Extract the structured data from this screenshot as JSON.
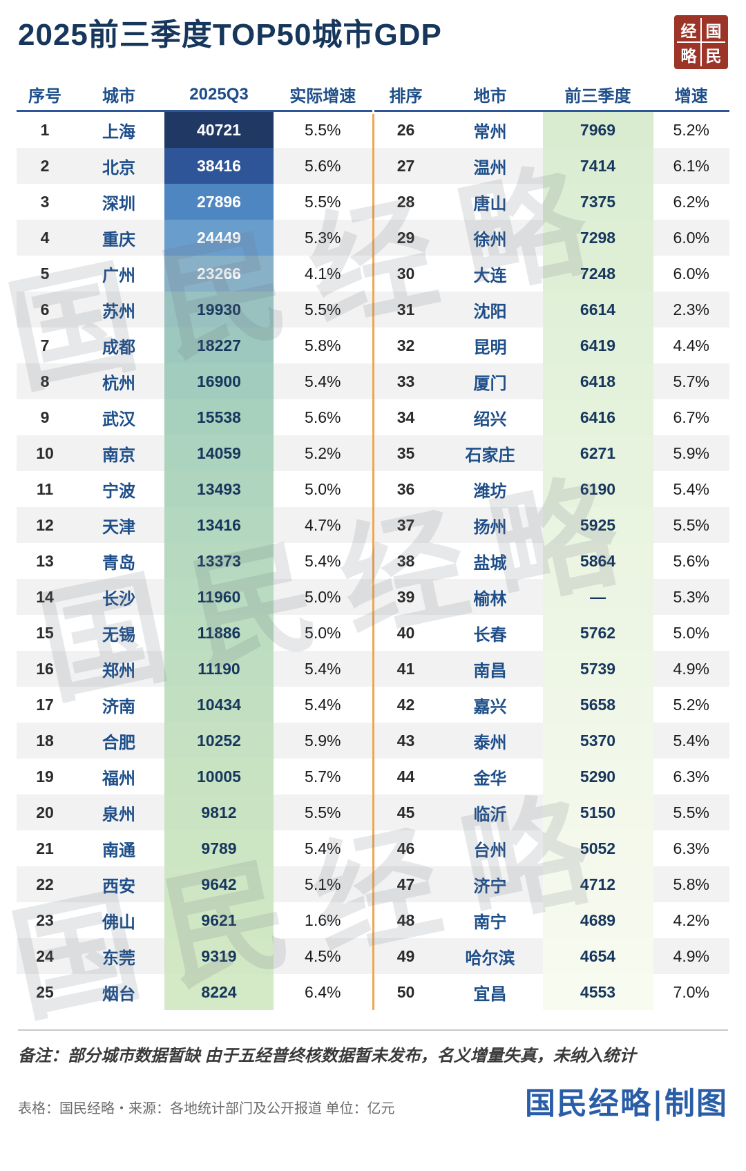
{
  "title": "2025前三季度TOP50城市GDP",
  "watermark": "国民经略",
  "logo": {
    "chars": [
      "经",
      "国",
      "略",
      "民"
    ]
  },
  "colors": {
    "title": "#16365c",
    "header_blue": "#2e5597",
    "divider_orange": "#f0a54f",
    "city_blue": "#1d4e89",
    "stripe": "#f2f2f2",
    "logo_red": "#9c3528",
    "credit_blue": "#2a5da8"
  },
  "footer": {
    "note": "备注：部分城市数据暂缺 由于五经普终核数据暂未发布，名义增量失真，未纳入统计",
    "source": "表格：国民经略・来源：各地统计部门及公开报道 单位：亿元",
    "credit": "国民经略|制图"
  },
  "chart_data": {
    "type": "table",
    "title": "2025前三季度TOP50城市GDP",
    "unit": "亿元",
    "left_columns": [
      "序号",
      "城市",
      "2025Q3",
      "实际增速"
    ],
    "right_columns": [
      "排序",
      "地市",
      "前三季度",
      "增速"
    ],
    "left_rows": [
      {
        "rank": "1",
        "city": "上海",
        "gdp": "40721",
        "growth": "5.5%",
        "bg": "#1f3864",
        "fg": "#ffffff"
      },
      {
        "rank": "2",
        "city": "北京",
        "gdp": "38416",
        "growth": "5.6%",
        "bg": "#2e5597",
        "fg": "#ffffff"
      },
      {
        "rank": "3",
        "city": "深圳",
        "gdp": "27896",
        "growth": "5.5%",
        "bg": "#4e86c2",
        "fg": "#ffffff"
      },
      {
        "rank": "4",
        "city": "重庆",
        "gdp": "24449",
        "growth": "5.3%",
        "bg": "#699dcb",
        "fg": "#ffffff"
      },
      {
        "rank": "5",
        "city": "广州",
        "gdp": "23266",
        "growth": "4.1%",
        "bg": "#88b0c6",
        "fg": "#ffffff"
      },
      {
        "rank": "6",
        "city": "苏州",
        "gdp": "19930",
        "growth": "5.5%",
        "bg": "#98c1c0",
        "fg": "#17365d"
      },
      {
        "rank": "7",
        "city": "成都",
        "gdp": "18227",
        "growth": "5.8%",
        "bg": "#9dc8bd",
        "fg": "#17365d"
      },
      {
        "rank": "8",
        "city": "杭州",
        "gdp": "16900",
        "growth": "5.4%",
        "bg": "#a2ccbd",
        "fg": "#17365d"
      },
      {
        "rank": "9",
        "city": "武汉",
        "gdp": "15538",
        "growth": "5.6%",
        "bg": "#a7d0bd",
        "fg": "#17365d"
      },
      {
        "rank": "10",
        "city": "南京",
        "gdp": "14059",
        "growth": "5.2%",
        "bg": "#acd3be",
        "fg": "#17365d"
      },
      {
        "rank": "11",
        "city": "宁波",
        "gdp": "13493",
        "growth": "5.0%",
        "bg": "#b0d5be",
        "fg": "#17365d"
      },
      {
        "rank": "12",
        "city": "天津",
        "gdp": "13416",
        "growth": "4.7%",
        "bg": "#b3d7bf",
        "fg": "#17365d"
      },
      {
        "rank": "13",
        "city": "青岛",
        "gdp": "13373",
        "growth": "5.4%",
        "bg": "#b6d9bf",
        "fg": "#17365d"
      },
      {
        "rank": "14",
        "city": "长沙",
        "gdp": "11960",
        "growth": "5.0%",
        "bg": "#b9dbc0",
        "fg": "#17365d"
      },
      {
        "rank": "15",
        "city": "无锡",
        "gdp": "11886",
        "growth": "5.0%",
        "bg": "#bcddc0",
        "fg": "#17365d"
      },
      {
        "rank": "16",
        "city": "郑州",
        "gdp": "11190",
        "growth": "5.4%",
        "bg": "#bfdec1",
        "fg": "#17365d"
      },
      {
        "rank": "17",
        "city": "济南",
        "gdp": "10434",
        "growth": "5.4%",
        "bg": "#c2e0c1",
        "fg": "#17365d"
      },
      {
        "rank": "18",
        "city": "合肥",
        "gdp": "10252",
        "growth": "5.9%",
        "bg": "#c5e1c2",
        "fg": "#17365d"
      },
      {
        "rank": "19",
        "city": "福州",
        "gdp": "10005",
        "growth": "5.7%",
        "bg": "#c7e3c2",
        "fg": "#17365d"
      },
      {
        "rank": "20",
        "city": "泉州",
        "gdp": "9812",
        "growth": "5.5%",
        "bg": "#cae4c3",
        "fg": "#17365d"
      },
      {
        "rank": "21",
        "city": "南通",
        "gdp": "9789",
        "growth": "5.4%",
        "bg": "#cce5c3",
        "fg": "#17365d"
      },
      {
        "rank": "22",
        "city": "西安",
        "gdp": "9642",
        "growth": "5.1%",
        "bg": "#cee6c4",
        "fg": "#17365d"
      },
      {
        "rank": "23",
        "city": "佛山",
        "gdp": "9621",
        "growth": "1.6%",
        "bg": "#d0e7c4",
        "fg": "#17365d"
      },
      {
        "rank": "24",
        "city": "东莞",
        "gdp": "9319",
        "growth": "4.5%",
        "bg": "#d2e8c5",
        "fg": "#17365d"
      },
      {
        "rank": "25",
        "city": "烟台",
        "gdp": "8224",
        "growth": "6.4%",
        "bg": "#d4e9c5",
        "fg": "#17365d"
      }
    ],
    "right_rows": [
      {
        "rank": "26",
        "city": "常州",
        "gdp": "7969",
        "growth": "5.2%",
        "bg": "#d9ecd0",
        "fg": "#17365d"
      },
      {
        "rank": "27",
        "city": "温州",
        "gdp": "7414",
        "growth": "6.1%",
        "bg": "#dbedd2",
        "fg": "#17365d"
      },
      {
        "rank": "28",
        "city": "唐山",
        "gdp": "7375",
        "growth": "6.2%",
        "bg": "#dceed3",
        "fg": "#17365d"
      },
      {
        "rank": "29",
        "city": "徐州",
        "gdp": "7298",
        "growth": "6.0%",
        "bg": "#deefd5",
        "fg": "#17365d"
      },
      {
        "rank": "30",
        "city": "大连",
        "gdp": "7248",
        "growth": "6.0%",
        "bg": "#dfefd6",
        "fg": "#17365d"
      },
      {
        "rank": "31",
        "city": "沈阳",
        "gdp": "6614",
        "growth": "2.3%",
        "bg": "#e1f0d8",
        "fg": "#17365d"
      },
      {
        "rank": "32",
        "city": "昆明",
        "gdp": "6419",
        "growth": "4.4%",
        "bg": "#e2f1d9",
        "fg": "#17365d"
      },
      {
        "rank": "33",
        "city": "厦门",
        "gdp": "6418",
        "growth": "5.7%",
        "bg": "#e4f1db",
        "fg": "#17365d"
      },
      {
        "rank": "34",
        "city": "绍兴",
        "gdp": "6416",
        "growth": "6.7%",
        "bg": "#e5f2dc",
        "fg": "#17365d"
      },
      {
        "rank": "35",
        "city": "石家庄",
        "gdp": "6271",
        "growth": "5.9%",
        "bg": "#e7f3de",
        "fg": "#17365d"
      },
      {
        "rank": "36",
        "city": "潍坊",
        "gdp": "6190",
        "growth": "5.4%",
        "bg": "#e8f3df",
        "fg": "#17365d"
      },
      {
        "rank": "37",
        "city": "扬州",
        "gdp": "5925",
        "growth": "5.5%",
        "bg": "#e9f4e1",
        "fg": "#17365d"
      },
      {
        "rank": "38",
        "city": "盐城",
        "gdp": "5864",
        "growth": "5.6%",
        "bg": "#ebf5e2",
        "fg": "#17365d"
      },
      {
        "rank": "39",
        "city": "榆林",
        "gdp": "—",
        "growth": "5.3%",
        "bg": "#ecf5e4",
        "fg": "#17365d"
      },
      {
        "rank": "40",
        "city": "长春",
        "gdp": "5762",
        "growth": "5.0%",
        "bg": "#edf6e5",
        "fg": "#17365d"
      },
      {
        "rank": "41",
        "city": "南昌",
        "gdp": "5739",
        "growth": "4.9%",
        "bg": "#eef6e6",
        "fg": "#17365d"
      },
      {
        "rank": "42",
        "city": "嘉兴",
        "gdp": "5658",
        "growth": "5.2%",
        "bg": "#f0f7e8",
        "fg": "#17365d"
      },
      {
        "rank": "43",
        "city": "泰州",
        "gdp": "5370",
        "growth": "5.4%",
        "bg": "#f1f7e9",
        "fg": "#17365d"
      },
      {
        "rank": "44",
        "city": "金华",
        "gdp": "5290",
        "growth": "6.3%",
        "bg": "#f2f8ea",
        "fg": "#17365d"
      },
      {
        "rank": "45",
        "city": "临沂",
        "gdp": "5150",
        "growth": "5.5%",
        "bg": "#f3f8eb",
        "fg": "#17365d"
      },
      {
        "rank": "46",
        "city": "台州",
        "gdp": "5052",
        "growth": "6.3%",
        "bg": "#f4f9ec",
        "fg": "#17365d"
      },
      {
        "rank": "47",
        "city": "济宁",
        "gdp": "4712",
        "growth": "5.8%",
        "bg": "#f5f9ed",
        "fg": "#17365d"
      },
      {
        "rank": "48",
        "city": "南宁",
        "gdp": "4689",
        "growth": "4.2%",
        "bg": "#f6faee",
        "fg": "#17365d"
      },
      {
        "rank": "49",
        "city": "哈尔滨",
        "gdp": "4654",
        "growth": "4.9%",
        "bg": "#f7faef",
        "fg": "#17365d"
      },
      {
        "rank": "50",
        "city": "宜昌",
        "gdp": "4553",
        "growth": "7.0%",
        "bg": "#f8fbf0",
        "fg": "#17365d"
      }
    ]
  }
}
